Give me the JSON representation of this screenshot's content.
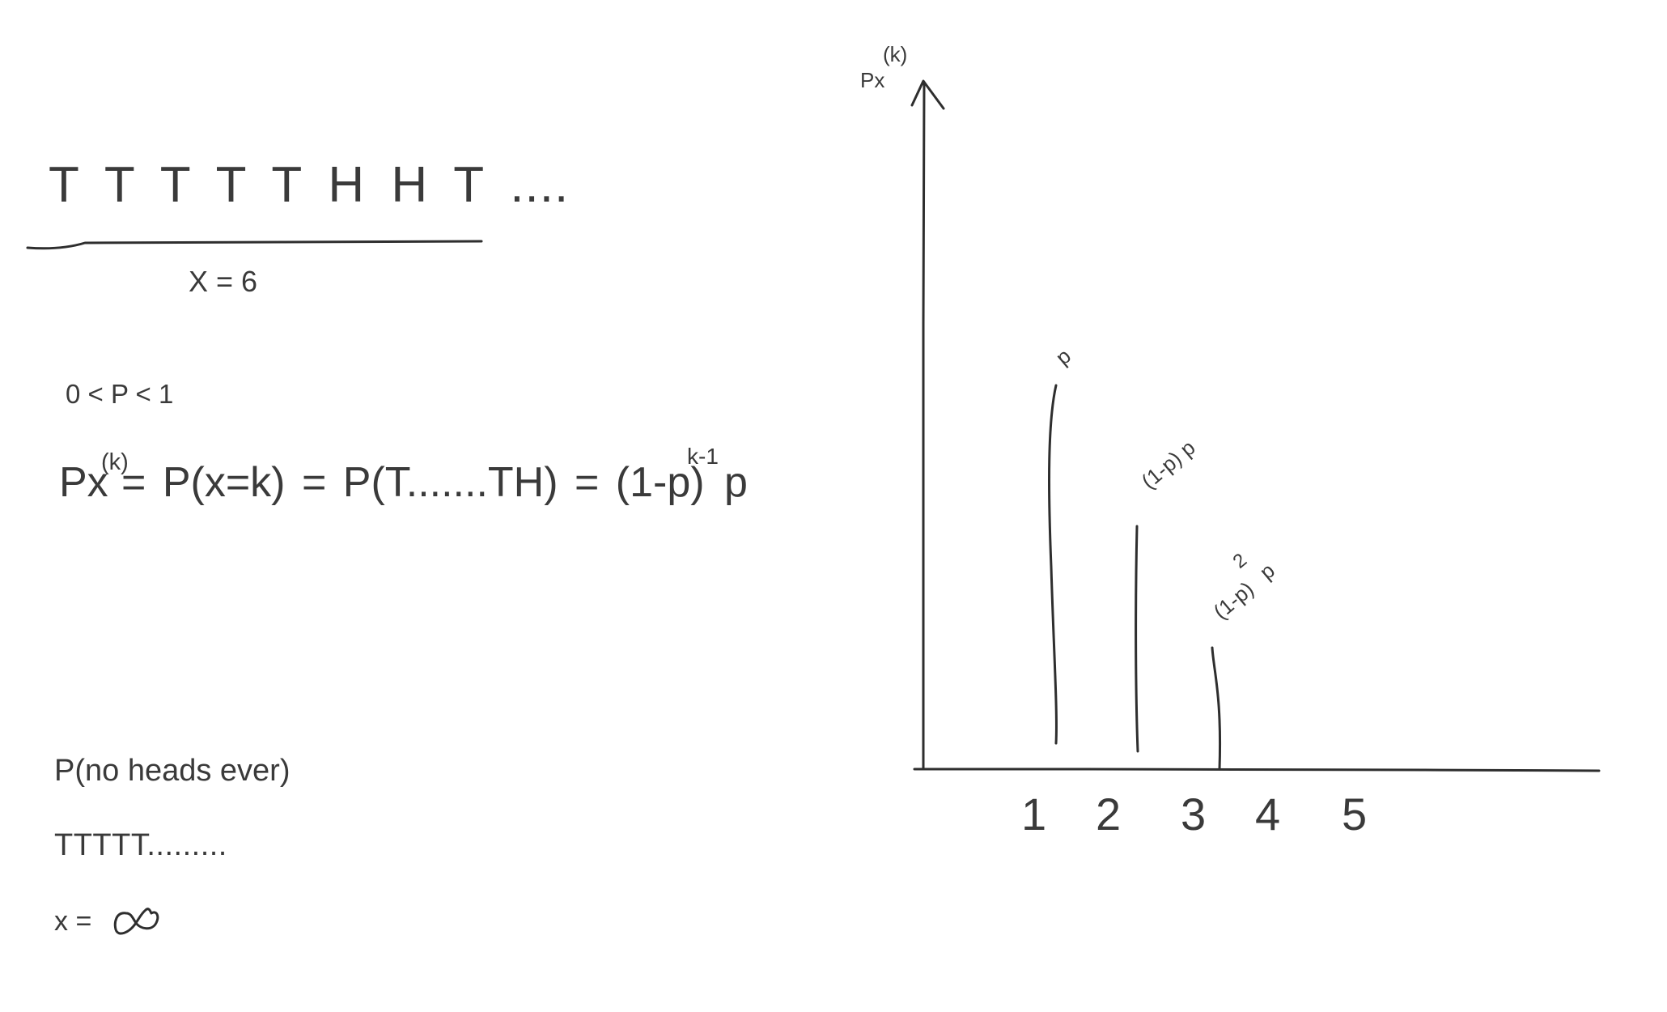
{
  "left_notes": {
    "coin_sequence": "T  T  T  T  T  H  H  T ....",
    "x_equals": "X = 6",
    "p_range": "0 < P < 1",
    "pmf_lhs_base": "Px",
    "pmf_lhs_sup": "(k)",
    "pmf_rhs": "=  P(x=k)  =  P(T.......TH) = (1-p)",
    "pmf_exponent": "k-1",
    "pmf_tail": "p",
    "no_heads": "P(no heads ever)",
    "tails_sequence": "TTTTT.........",
    "x_infinity_label": "x =",
    "x_infinity_symbol": "infinity-symbol"
  },
  "graph": {
    "y_axis_label": "Px",
    "y_axis_label_sup": "(k)",
    "x_ticks": [
      "1",
      "2",
      "3",
      "4",
      "5"
    ],
    "bar_labels": [
      "p",
      "(1-p) p",
      "(1-p)",
      "2",
      "p"
    ]
  }
}
